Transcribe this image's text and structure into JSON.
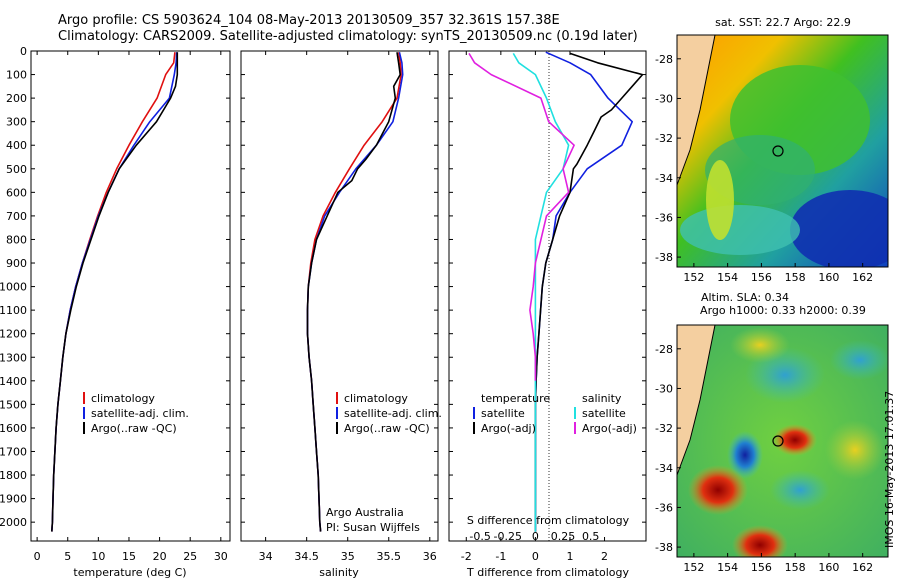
{
  "header": {
    "line1": "Argo profile: CS 5903624_104 08-May-2013 20130509_357 32.361S 157.38E",
    "line2": "Climatology: CARS2009. Satellite-adjusted climatology: synTS_20130509.nc (0.19d later)"
  },
  "colors": {
    "climatology": "#e01010",
    "satellite": "#1020e0",
    "argo": "#000000",
    "s_satellite": "#20e0e0",
    "s_argo": "#e020e0"
  },
  "chart_data": [
    {
      "type": "line",
      "id": "temperature",
      "xlabel": "temperature (deg C)",
      "ylabel": "",
      "xlim": [
        -1,
        31.5
      ],
      "ylim": [
        2080,
        0
      ],
      "xticks": [
        "0",
        "5",
        "10",
        "15",
        "20",
        "25",
        "30"
      ],
      "yticks": [
        "0",
        "100",
        "200",
        "300",
        "400",
        "500",
        "600",
        "700",
        "800",
        "900",
        "1000",
        "1100",
        "1200",
        "1300",
        "1400",
        "1500",
        "1600",
        "1700",
        "1800",
        "1900",
        "2000"
      ],
      "legend": [
        "climatology",
        "satellite-adj. clim.",
        "Argo(..raw -QC)"
      ],
      "series": [
        {
          "name": "climatology",
          "color": "climatology",
          "points": [
            [
              22.5,
              5
            ],
            [
              22.3,
              50
            ],
            [
              21.0,
              100
            ],
            [
              19.6,
              200
            ],
            [
              17.2,
              300
            ],
            [
              15.0,
              400
            ],
            [
              13.0,
              500
            ],
            [
              11.3,
              600
            ],
            [
              9.9,
              700
            ],
            [
              8.6,
              800
            ],
            [
              7.4,
              900
            ],
            [
              6.3,
              1000
            ],
            [
              5.4,
              1100
            ],
            [
              4.7,
              1200
            ],
            [
              4.2,
              1300
            ],
            [
              3.8,
              1400
            ],
            [
              3.4,
              1500
            ],
            [
              3.1,
              1600
            ],
            [
              2.9,
              1700
            ],
            [
              2.7,
              1800
            ],
            [
              2.6,
              1900
            ],
            [
              2.5,
              2000
            ],
            [
              2.4,
              2040
            ]
          ]
        },
        {
          "name": "satellite-adj. clim.",
          "color": "satellite",
          "points": [
            [
              22.8,
              5
            ],
            [
              22.7,
              50
            ],
            [
              22.4,
              100
            ],
            [
              21.6,
              200
            ],
            [
              18.4,
              300
            ],
            [
              15.8,
              400
            ],
            [
              13.4,
              500
            ],
            [
              11.6,
              600
            ],
            [
              10.0,
              700
            ],
            [
              8.7,
              800
            ],
            [
              7.4,
              900
            ],
            [
              6.3,
              1000
            ],
            [
              5.4,
              1100
            ],
            [
              4.7,
              1200
            ],
            [
              4.2,
              1300
            ],
            [
              3.8,
              1400
            ],
            [
              3.4,
              1500
            ],
            [
              3.1,
              1600
            ],
            [
              2.9,
              1700
            ],
            [
              2.7,
              1800
            ],
            [
              2.6,
              1900
            ],
            [
              2.5,
              2000
            ],
            [
              2.4,
              2040
            ]
          ]
        },
        {
          "name": "Argo(..raw -QC)",
          "color": "argo",
          "points": [
            [
              22.9,
              5
            ],
            [
              22.9,
              100
            ],
            [
              22.6,
              150
            ],
            [
              21.8,
              200
            ],
            [
              19.5,
              300
            ],
            [
              16.2,
              400
            ],
            [
              13.4,
              500
            ],
            [
              11.6,
              600
            ],
            [
              10.1,
              700
            ],
            [
              8.8,
              800
            ],
            [
              7.5,
              900
            ],
            [
              6.4,
              1000
            ],
            [
              5.5,
              1100
            ],
            [
              4.7,
              1200
            ],
            [
              4.2,
              1300
            ],
            [
              3.8,
              1400
            ],
            [
              3.4,
              1500
            ],
            [
              3.1,
              1600
            ],
            [
              2.9,
              1700
            ],
            [
              2.7,
              1800
            ],
            [
              2.6,
              1900
            ],
            [
              2.5,
              2000
            ],
            [
              2.4,
              2040
            ]
          ]
        }
      ]
    },
    {
      "type": "line",
      "id": "salinity",
      "xlabel": "salinity",
      "ylabel": "",
      "xlim": [
        33.7,
        36.1
      ],
      "ylim": [
        2080,
        0
      ],
      "xticks": [
        "34",
        "34.5",
        "35",
        "35.5",
        "36"
      ],
      "legend": [
        "climatology",
        "satellite-adj. clim.",
        "Argo(..raw -QC)"
      ],
      "annotation": [
        "Argo Australia",
        "PI: Susan Wijffels"
      ],
      "series": [
        {
          "name": "climatology",
          "color": "climatology",
          "points": [
            [
              35.62,
              5
            ],
            [
              35.64,
              50
            ],
            [
              35.65,
              100
            ],
            [
              35.6,
              200
            ],
            [
              35.42,
              300
            ],
            [
              35.2,
              400
            ],
            [
              35.02,
              500
            ],
            [
              34.85,
              600
            ],
            [
              34.7,
              700
            ],
            [
              34.6,
              800
            ],
            [
              34.55,
              900
            ],
            [
              34.52,
              1000
            ],
            [
              34.51,
              1100
            ],
            [
              34.51,
              1200
            ],
            [
              34.53,
              1300
            ],
            [
              34.56,
              1400
            ],
            [
              34.58,
              1500
            ],
            [
              34.6,
              1600
            ],
            [
              34.62,
              1700
            ],
            [
              34.64,
              1800
            ],
            [
              34.65,
              1900
            ],
            [
              34.66,
              2000
            ],
            [
              34.67,
              2040
            ]
          ]
        },
        {
          "name": "satellite-adj. clim.",
          "color": "satellite",
          "points": [
            [
              35.63,
              5
            ],
            [
              35.66,
              50
            ],
            [
              35.67,
              100
            ],
            [
              35.62,
              200
            ],
            [
              35.55,
              300
            ],
            [
              35.35,
              400
            ],
            [
              35.1,
              500
            ],
            [
              34.9,
              600
            ],
            [
              34.72,
              700
            ],
            [
              34.62,
              800
            ],
            [
              34.56,
              900
            ],
            [
              34.52,
              1000
            ],
            [
              34.51,
              1100
            ],
            [
              34.51,
              1200
            ],
            [
              34.53,
              1300
            ],
            [
              34.56,
              1400
            ],
            [
              34.58,
              1500
            ],
            [
              34.6,
              1600
            ],
            [
              34.62,
              1700
            ],
            [
              34.64,
              1800
            ],
            [
              34.65,
              1900
            ],
            [
              34.66,
              2000
            ],
            [
              34.67,
              2040
            ]
          ]
        },
        {
          "name": "Argo(..raw -QC)",
          "color": "argo",
          "points": [
            [
              35.6,
              5
            ],
            [
              35.62,
              50
            ],
            [
              35.64,
              100
            ],
            [
              35.56,
              150
            ],
            [
              35.58,
              200
            ],
            [
              35.5,
              300
            ],
            [
              35.35,
              400
            ],
            [
              35.22,
              460
            ],
            [
              35.12,
              500
            ],
            [
              35.05,
              550
            ],
            [
              34.88,
              600
            ],
            [
              34.75,
              700
            ],
            [
              34.62,
              800
            ],
            [
              34.56,
              900
            ],
            [
              34.52,
              1000
            ],
            [
              34.51,
              1100
            ],
            [
              34.51,
              1200
            ],
            [
              34.53,
              1300
            ],
            [
              34.56,
              1400
            ],
            [
              34.58,
              1500
            ],
            [
              34.6,
              1600
            ],
            [
              34.62,
              1700
            ],
            [
              34.64,
              1800
            ],
            [
              34.65,
              1900
            ],
            [
              34.66,
              2000
            ],
            [
              34.67,
              2040
            ]
          ]
        }
      ]
    },
    {
      "type": "line",
      "id": "differences",
      "xlabel": "T difference from climatology",
      "xlabel_top": "S difference from climatology",
      "ylabel": "",
      "xlim": [
        -2.5,
        3.2
      ],
      "ylim": [
        2080,
        0
      ],
      "xticks": [
        "-2",
        "-1",
        "0",
        "1",
        "2"
      ],
      "xticks_s": [
        "-0.5",
        "-0.25",
        "0",
        "0.25",
        "0.5"
      ],
      "legend_headers": [
        "temperature",
        "salinity"
      ],
      "legend_t": [
        "satellite",
        "Argo(-adj)"
      ],
      "legend_s": [
        "satellite",
        "Argo(-adj)"
      ],
      "series": [
        {
          "name": "satellite",
          "group": "temperature",
          "color": "satellite",
          "points": [
            [
              0.3,
              5
            ],
            [
              1.0,
              50
            ],
            [
              1.6,
              100
            ],
            [
              2.1,
              200
            ],
            [
              2.8,
              300
            ],
            [
              2.5,
              400
            ],
            [
              1.5,
              500
            ],
            [
              1.0,
              600
            ],
            [
              0.6,
              700
            ],
            [
              0.5,
              800
            ],
            [
              0.3,
              900
            ],
            [
              0.2,
              1000
            ],
            [
              0.15,
              1100
            ],
            [
              0.1,
              1200
            ],
            [
              0.05,
              1300
            ],
            [
              0.02,
              1400
            ],
            [
              0.0,
              1500
            ],
            [
              0.0,
              1700
            ],
            [
              0.0,
              1900
            ],
            [
              0.0,
              2040
            ]
          ]
        },
        {
          "name": "Argo(-adj)",
          "group": "temperature",
          "color": "argo",
          "points": [
            [
              1.0,
              10
            ],
            [
              1.8,
              50
            ],
            [
              3.1,
              100
            ],
            [
              2.5,
              200
            ],
            [
              2.2,
              250
            ],
            [
              1.9,
              280
            ],
            [
              1.7,
              340
            ],
            [
              1.5,
              400
            ],
            [
              1.2,
              480
            ],
            [
              1.1,
              500
            ],
            [
              1.0,
              600
            ],
            [
              0.7,
              700
            ],
            [
              0.5,
              800
            ],
            [
              0.3,
              900
            ],
            [
              0.2,
              1000
            ],
            [
              0.15,
              1100
            ],
            [
              0.1,
              1200
            ],
            [
              0.05,
              1300
            ],
            [
              0.02,
              1400
            ],
            [
              0.0,
              1500
            ],
            [
              0.0,
              1700
            ],
            [
              0.0,
              1900
            ],
            [
              0.0,
              2040
            ]
          ]
        },
        {
          "name": "satellite",
          "group": "salinity",
          "color": "s_satellite",
          "points": [
            [
              -0.2,
              10
            ],
            [
              -0.15,
              50
            ],
            [
              0.0,
              100
            ],
            [
              0.1,
              200
            ],
            [
              0.18,
              300
            ],
            [
              0.3,
              400
            ],
            [
              0.25,
              500
            ],
            [
              0.1,
              600
            ],
            [
              0.05,
              700
            ],
            [
              0.0,
              800
            ],
            [
              0.0,
              1000
            ],
            [
              0.0,
              1400
            ],
            [
              0.0,
              1700
            ],
            [
              0.0,
              2000
            ],
            [
              0.0,
              2040
            ]
          ]
        },
        {
          "name": "Argo(-adj)",
          "group": "salinity",
          "color": "s_argo",
          "points": [
            [
              -0.6,
              10
            ],
            [
              -0.55,
              50
            ],
            [
              -0.4,
              100
            ],
            [
              0.05,
              200
            ],
            [
              0.12,
              300
            ],
            [
              0.35,
              400
            ],
            [
              0.25,
              500
            ],
            [
              0.3,
              600
            ],
            [
              0.1,
              700
            ],
            [
              0.0,
              900
            ],
            [
              -0.02,
              1000
            ],
            [
              -0.05,
              1100
            ],
            [
              -0.02,
              1200
            ],
            [
              0.0,
              1300
            ],
            [
              0.0,
              1400
            ]
          ]
        }
      ]
    },
    {
      "type": "heatmap",
      "id": "sst-map",
      "title": "sat. SST: 22.7 Argo: 22.9",
      "xticks": [
        "152",
        "154",
        "156",
        "158",
        "160",
        "162"
      ],
      "yticks": [
        "-28",
        "-30",
        "-32",
        "-34",
        "-36",
        "-38"
      ],
      "marker": {
        "lon": 157.38,
        "lat": -32.36
      }
    },
    {
      "type": "heatmap",
      "id": "sla-map",
      "title": "Altim. SLA: 0.34",
      "subtitle": "Argo h1000: 0.33 h2000: 0.39",
      "xticks": [
        "152",
        "154",
        "156",
        "158",
        "160",
        "162"
      ],
      "yticks": [
        "-28",
        "-30",
        "-32",
        "-34",
        "-36",
        "-38"
      ],
      "marker": {
        "lon": 157.38,
        "lat": -32.36
      }
    }
  ],
  "footer": {
    "stamp": "IMOS 16-May-2013 17:01:37"
  }
}
